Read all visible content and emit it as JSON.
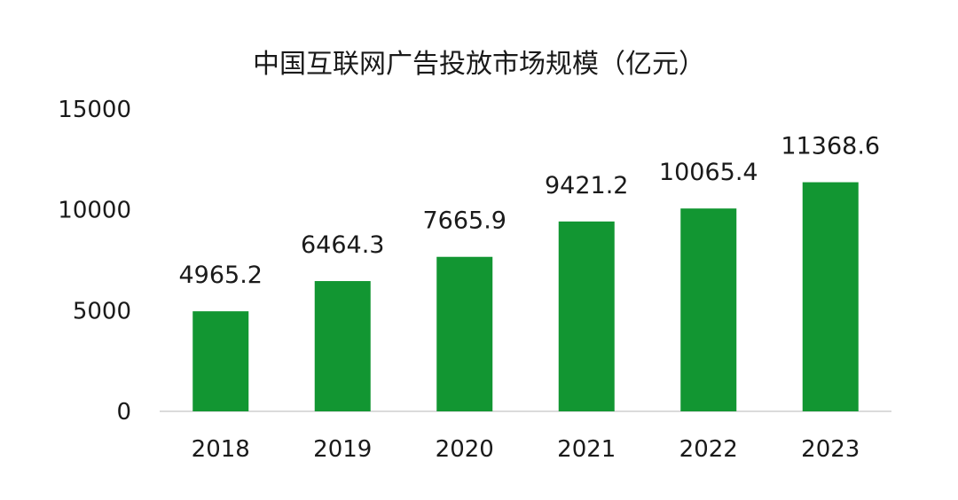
{
  "chart_data": {
    "type": "bar",
    "title": "中国互联网广告投放市场规模（亿元）",
    "xlabel": "",
    "ylabel": "",
    "categories": [
      "2018",
      "2019",
      "2020",
      "2021",
      "2022",
      "2023"
    ],
    "values": [
      4965.2,
      6464.3,
      7665.9,
      9421.2,
      10065.4,
      11368.6
    ],
    "data_labels": [
      "4965.2",
      "6464.3",
      "7665.9",
      "9421.2",
      "10065.4",
      "11368.6"
    ],
    "ylim": [
      0,
      15000
    ],
    "yticks": [
      0,
      5000,
      10000,
      15000
    ],
    "ytick_labels": [
      "0",
      "5000",
      "10000",
      "15000"
    ],
    "grid": false,
    "legend": "none",
    "colors": {
      "bar": "#129632",
      "axis": "#cfcfcf",
      "text": "#1a1a1a"
    }
  }
}
